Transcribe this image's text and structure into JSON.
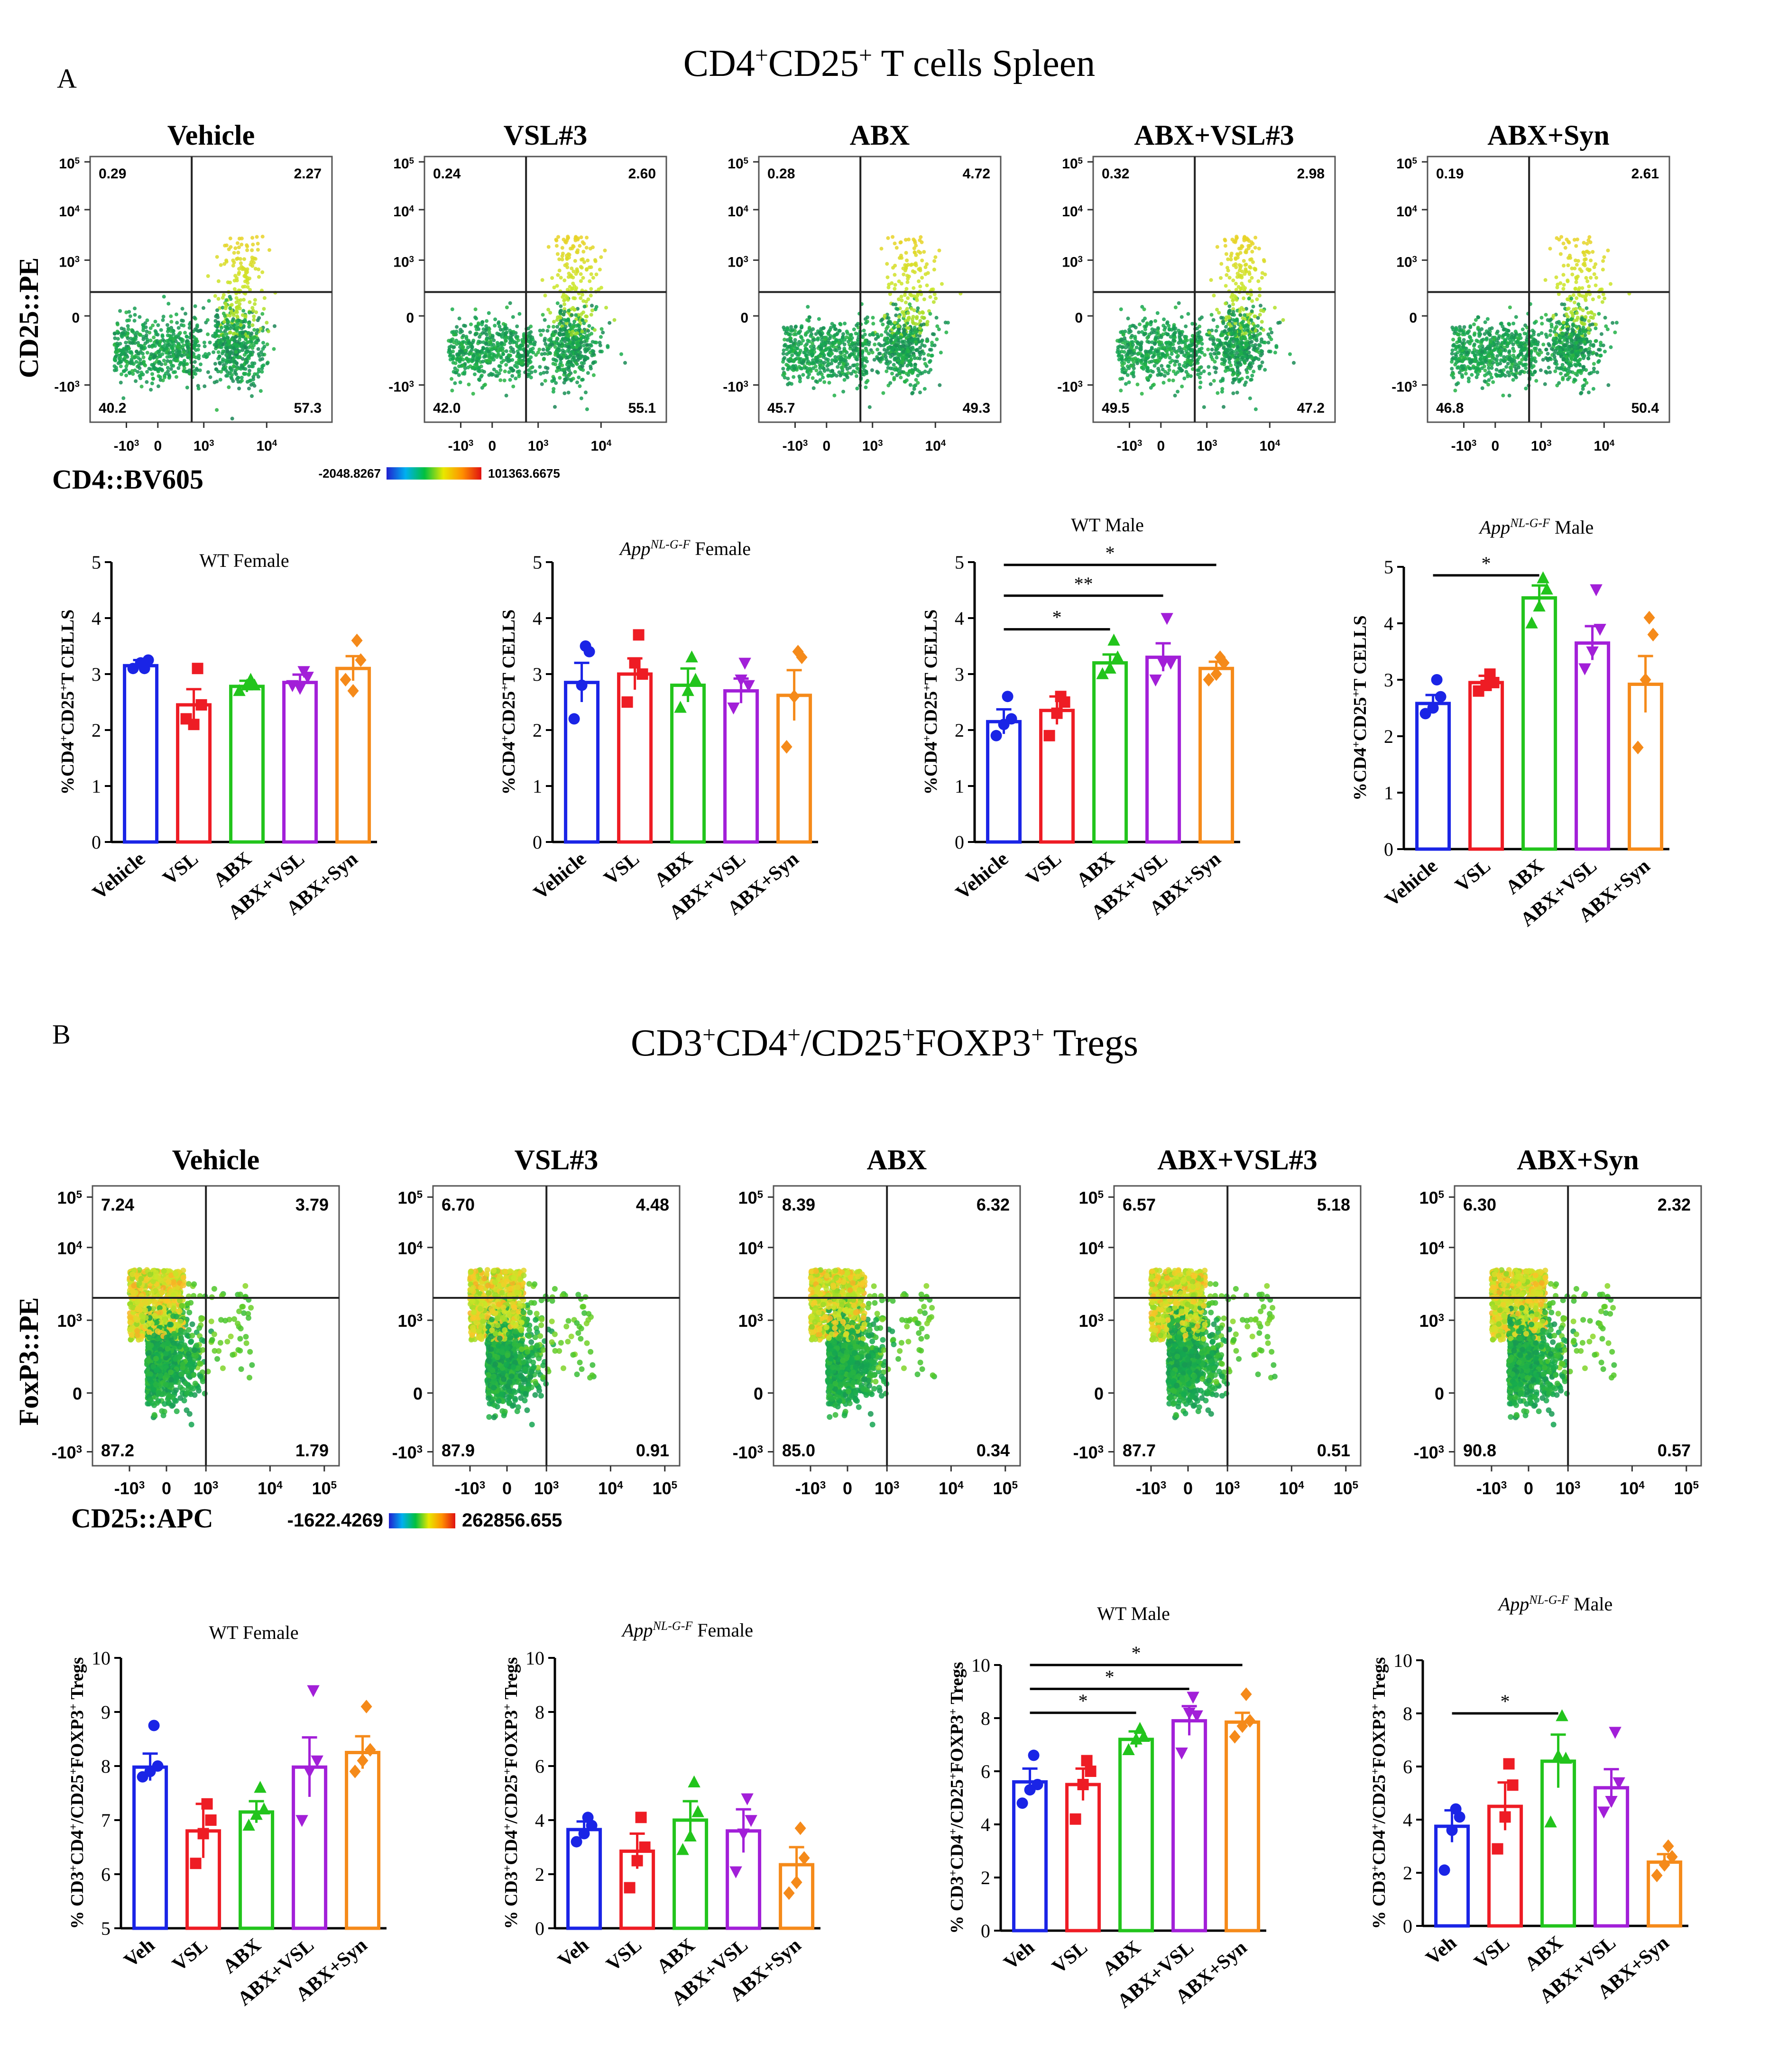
{
  "panels": {
    "A": {
      "letter": "A",
      "title_parts": [
        "CD4",
        "+",
        "CD25",
        "+",
        " T cells Spleen"
      ],
      "flow": {
        "y_label": "CD25::PE",
        "x_label": "CD4::BV605",
        "color_scale": {
          "min": "-2048.8267",
          "max": "101363.6675"
        },
        "y_ticks": [
          {
            "base": "10",
            "exp": "5"
          },
          {
            "base": "10",
            "exp": "4"
          },
          {
            "base": "10",
            "exp": "3"
          },
          {
            "base": "0",
            "exp": ""
          },
          {
            "base": "-10",
            "exp": "3"
          }
        ],
        "x_ticks": [
          {
            "base": "-10",
            "exp": "3"
          },
          {
            "base": "0",
            "exp": ""
          },
          {
            "base": "10",
            "exp": "3"
          },
          {
            "base": "10",
            "exp": "4"
          }
        ],
        "plots": [
          {
            "name": "Vehicle",
            "ul": "0.29",
            "ur": "2.27",
            "ll": "40.2",
            "lr": "57.3"
          },
          {
            "name": "VSL#3",
            "ul": "0.24",
            "ur": "2.60",
            "ll": "42.0",
            "lr": "55.1"
          },
          {
            "name": "ABX",
            "ul": "0.28",
            "ur": "4.72",
            "ll": "45.7",
            "lr": "49.3"
          },
          {
            "name": "ABX+VSL#3",
            "ul": "0.32",
            "ur": "2.98",
            "ll": "49.5",
            "lr": "47.2"
          },
          {
            "name": "ABX+Syn",
            "ul": "0.19",
            "ur": "2.61",
            "ll": "46.8",
            "lr": "50.4"
          }
        ]
      }
    },
    "B": {
      "letter": "B",
      "title_parts": [
        "CD3",
        "+",
        "CD4",
        "+",
        "/CD25",
        "+",
        "FOXP3",
        "+",
        " Tregs"
      ],
      "flow": {
        "y_label": "FoxP3::PE",
        "x_label": "CD25::APC",
        "color_scale": {
          "min": "-1622.4269",
          "max": "262856.655"
        },
        "y_ticks": [
          {
            "base": "10",
            "exp": "5"
          },
          {
            "base": "10",
            "exp": "4"
          },
          {
            "base": "10",
            "exp": "3"
          },
          {
            "base": "0",
            "exp": ""
          },
          {
            "base": "-10",
            "exp": "3"
          }
        ],
        "x_ticks": [
          {
            "base": "-10",
            "exp": "3"
          },
          {
            "base": "0",
            "exp": ""
          },
          {
            "base": "10",
            "exp": "3"
          },
          {
            "base": "10",
            "exp": "4"
          },
          {
            "base": "10",
            "exp": "5"
          }
        ],
        "plots": [
          {
            "name": "Vehicle",
            "ul": "7.24",
            "ur": "3.79",
            "ll": "87.2",
            "lr": "1.79"
          },
          {
            "name": "VSL#3",
            "ul": "6.70",
            "ur": "4.48",
            "ll": "87.9",
            "lr": "0.91"
          },
          {
            "name": "ABX",
            "ul": "8.39",
            "ur": "6.32",
            "ll": "85.0",
            "lr": "0.34"
          },
          {
            "name": "ABX+VSL#3",
            "ul": "6.57",
            "ur": "5.18",
            "ll": "87.7",
            "lr": "0.51"
          },
          {
            "name": "ABX+Syn",
            "ul": "6.30",
            "ur": "2.32",
            "ll": "90.8",
            "lr": "0.57"
          }
        ]
      }
    }
  },
  "chart_data": [
    {
      "type": "bar",
      "panel": "A",
      "title_parts": [
        "WT Female"
      ],
      "ylabel_parts": [
        "%CD4",
        "+",
        "CD25",
        "+",
        "T CELLS"
      ],
      "categories": [
        "Vehicle",
        "VSL",
        "ABX",
        "ABX+VSL",
        "ABX+Syn"
      ],
      "values": [
        3.15,
        2.45,
        2.78,
        2.85,
        3.1
      ],
      "errors": [
        0.1,
        0.28,
        0.1,
        0.14,
        0.22
      ],
      "points": [
        [
          3.1,
          3.2,
          3.25,
          3.1
        ],
        [
          2.2,
          2.1,
          2.45,
          3.1
        ],
        [
          2.7,
          2.8,
          2.8,
          2.9
        ],
        [
          2.8,
          2.75,
          2.95,
          3.05
        ],
        [
          2.9,
          2.7,
          3.25,
          3.6
        ]
      ],
      "ylim": [
        0,
        5
      ],
      "yticks": [
        "0",
        "1",
        "2",
        "3",
        "4",
        "5"
      ],
      "significance": []
    },
    {
      "type": "bar",
      "panel": "A",
      "title_parts": [
        "App",
        "NL-G-F",
        " Female"
      ],
      "ylabel_parts": [
        "%CD4",
        "+",
        "CD25",
        "+",
        "T CELLS"
      ],
      "categories": [
        "Vehicle",
        "VSL",
        "ABX",
        "ABX+VSL",
        "ABX+Syn"
      ],
      "values": [
        2.85,
        3.0,
        2.8,
        2.7,
        2.62
      ],
      "errors": [
        0.35,
        0.28,
        0.3,
        0.22,
        0.45
      ],
      "points": [
        [
          2.2,
          2.8,
          3.4,
          3.5
        ],
        [
          2.5,
          3.2,
          3.0,
          3.7
        ],
        [
          2.4,
          2.7,
          2.9,
          3.3
        ],
        [
          2.4,
          2.9,
          2.8,
          3.2
        ],
        [
          1.7,
          2.6,
          3.3,
          3.4
        ]
      ],
      "ylim": [
        0,
        5
      ],
      "yticks": [
        "0",
        "1",
        "2",
        "3",
        "4",
        "5"
      ],
      "significance": []
    },
    {
      "type": "bar",
      "panel": "A",
      "title_parts": [
        "WT Male"
      ],
      "ylabel_parts": [
        "%CD4",
        "+",
        "CD25",
        "+",
        "T CELLS"
      ],
      "categories": [
        "Vehicle",
        "VSL",
        "ABX",
        "ABX+VSL",
        "ABX+Syn"
      ],
      "values": [
        2.15,
        2.35,
        3.2,
        3.3,
        3.1
      ],
      "errors": [
        0.22,
        0.25,
        0.15,
        0.25,
        0.12
      ],
      "points": [
        [
          1.9,
          2.1,
          2.2,
          2.6
        ],
        [
          1.9,
          2.3,
          2.5,
          2.6
        ],
        [
          3.0,
          3.1,
          3.3,
          3.6
        ],
        [
          2.9,
          3.2,
          3.2,
          4.0
        ],
        [
          2.9,
          3.0,
          3.2,
          3.3
        ]
      ],
      "ylim": [
        0,
        5
      ],
      "yticks": [
        "0",
        "1",
        "2",
        "3",
        "4",
        "5"
      ],
      "significance": [
        {
          "from": 0,
          "to": 2,
          "label": "*",
          "y": 3.8
        },
        {
          "from": 0,
          "to": 3,
          "label": "**",
          "y": 4.4
        },
        {
          "from": 0,
          "to": 4,
          "label": "*",
          "y": 4.95
        }
      ]
    },
    {
      "type": "bar",
      "panel": "A",
      "title_parts": [
        "App",
        "NL-G-F",
        " Male"
      ],
      "ylabel_parts": [
        "%CD4",
        "+",
        "CD25",
        "+",
        "T CELLS"
      ],
      "categories": [
        "Vehicle",
        "VSL",
        "ABX",
        "ABX+VSL",
        "ABX+Syn"
      ],
      "values": [
        2.58,
        2.95,
        4.45,
        3.65,
        2.92
      ],
      "errors": [
        0.15,
        0.12,
        0.22,
        0.3,
        0.5
      ],
      "points": [
        [
          2.4,
          2.5,
          2.7,
          3.0
        ],
        [
          2.8,
          2.9,
          2.95,
          3.1
        ],
        [
          4.0,
          4.3,
          4.6,
          4.8
        ],
        [
          3.2,
          3.5,
          3.9,
          4.6
        ],
        [
          1.8,
          3.0,
          3.8,
          4.1
        ]
      ],
      "ylim": [
        0,
        5
      ],
      "yticks": [
        "0",
        "1",
        "2",
        "3",
        "4",
        "5"
      ],
      "significance": [
        {
          "from": 0,
          "to": 2,
          "label": "*",
          "y": 4.85
        }
      ]
    },
    {
      "type": "bar",
      "panel": "B",
      "title_parts": [
        "WT Female"
      ],
      "ylabel_parts": [
        "% CD3",
        "+",
        "CD4",
        "+",
        "/CD25",
        "+",
        "FOXP3",
        "+",
        " Tregs"
      ],
      "categories": [
        "Veh",
        "VSL",
        "ABX",
        "ABX+VSL",
        "ABX+Syn"
      ],
      "values": [
        7.98,
        6.8,
        7.15,
        7.98,
        8.25
      ],
      "errors": [
        0.25,
        0.5,
        0.2,
        0.55,
        0.3
      ],
      "points": [
        [
          7.8,
          7.9,
          8.0,
          8.75
        ],
        [
          6.2,
          6.75,
          7.0,
          7.3
        ],
        [
          6.9,
          7.1,
          7.2,
          7.6
        ],
        [
          7.0,
          7.9,
          8.1,
          9.4
        ],
        [
          7.9,
          8.1,
          8.3,
          9.1
        ]
      ],
      "ylim": [
        5,
        10
      ],
      "yticks": [
        "5",
        "6",
        "7",
        "8",
        "9",
        "10"
      ],
      "significance": []
    },
    {
      "type": "bar",
      "panel": "B",
      "title_parts": [
        "App",
        "NL-G-F",
        " Female"
      ],
      "ylabel_parts": [
        "% CD3",
        "+",
        "CD4",
        "+",
        "/CD25",
        "+",
        "FOXP3",
        "+",
        " Tregs"
      ],
      "categories": [
        "Veh",
        "VSL",
        "ABX",
        "ABX+VSL",
        "ABX+Syn"
      ],
      "values": [
        3.65,
        2.85,
        4.0,
        3.6,
        2.35
      ],
      "errors": [
        0.3,
        0.65,
        0.7,
        0.8,
        0.65
      ],
      "points": [
        [
          3.2,
          3.5,
          3.8,
          4.1
        ],
        [
          1.5,
          2.5,
          3.0,
          4.1
        ],
        [
          2.9,
          3.4,
          4.3,
          5.4
        ],
        [
          2.1,
          3.5,
          4.0,
          4.8
        ],
        [
          1.3,
          1.7,
          2.6,
          3.7
        ]
      ],
      "ylim": [
        0,
        10
      ],
      "yticks": [
        "0",
        "2",
        "4",
        "6",
        "8",
        "10"
      ],
      "significance": []
    },
    {
      "type": "bar",
      "panel": "B",
      "title_parts": [
        "WT Male"
      ],
      "ylabel_parts": [
        "% CD3",
        "+",
        "CD4",
        "+",
        "/CD25",
        "+",
        "FOXP3",
        "+",
        " Tregs"
      ],
      "categories": [
        "Veh",
        "VSL",
        "ABX",
        "ABX+VSL",
        "ABX+Syn"
      ],
      "values": [
        5.6,
        5.5,
        7.2,
        7.9,
        7.85
      ],
      "errors": [
        0.5,
        0.6,
        0.3,
        0.55,
        0.35
      ],
      "points": [
        [
          4.8,
          5.3,
          5.5,
          6.6
        ],
        [
          4.2,
          5.5,
          6.0,
          6.4
        ],
        [
          6.8,
          7.2,
          7.3,
          7.6
        ],
        [
          6.7,
          8.2,
          8.1,
          8.8
        ],
        [
          7.3,
          7.7,
          7.9,
          8.9
        ]
      ],
      "ylim": [
        0,
        10
      ],
      "yticks": [
        "0",
        "2",
        "4",
        "6",
        "8",
        "10"
      ],
      "significance": [
        {
          "from": 0,
          "to": 2,
          "label": "*",
          "y": 8.2
        },
        {
          "from": 0,
          "to": 3,
          "label": "*",
          "y": 9.1
        },
        {
          "from": 0,
          "to": 4,
          "label": "*",
          "y": 10.0
        }
      ]
    },
    {
      "type": "bar",
      "panel": "B",
      "title_parts": [
        "App",
        "NL-G-F",
        " Male"
      ],
      "ylabel_parts": [
        "% CD3",
        "+",
        "CD4",
        "+",
        "/CD25",
        "+",
        "FOXP3",
        "+",
        " Tregs"
      ],
      "categories": [
        "Veh",
        "VSL",
        "ABX",
        "ABX+VSL",
        "ABX+Syn"
      ],
      "values": [
        3.75,
        4.5,
        6.2,
        5.2,
        2.4
      ],
      "errors": [
        0.6,
        0.9,
        1.0,
        0.7,
        0.3
      ],
      "points": [
        [
          2.1,
          3.6,
          4.1,
          4.4
        ],
        [
          2.9,
          4.1,
          5.3,
          6.1
        ],
        [
          3.9,
          6.4,
          6.3,
          7.9
        ],
        [
          4.3,
          4.7,
          5.4,
          7.3
        ],
        [
          1.9,
          2.3,
          2.6,
          3.0
        ]
      ],
      "ylim": [
        0,
        10
      ],
      "yticks": [
        "0",
        "2",
        "4",
        "6",
        "8",
        "10"
      ],
      "significance": [
        {
          "from": 0,
          "to": 2,
          "label": "*",
          "y": 8.0
        }
      ]
    }
  ]
}
